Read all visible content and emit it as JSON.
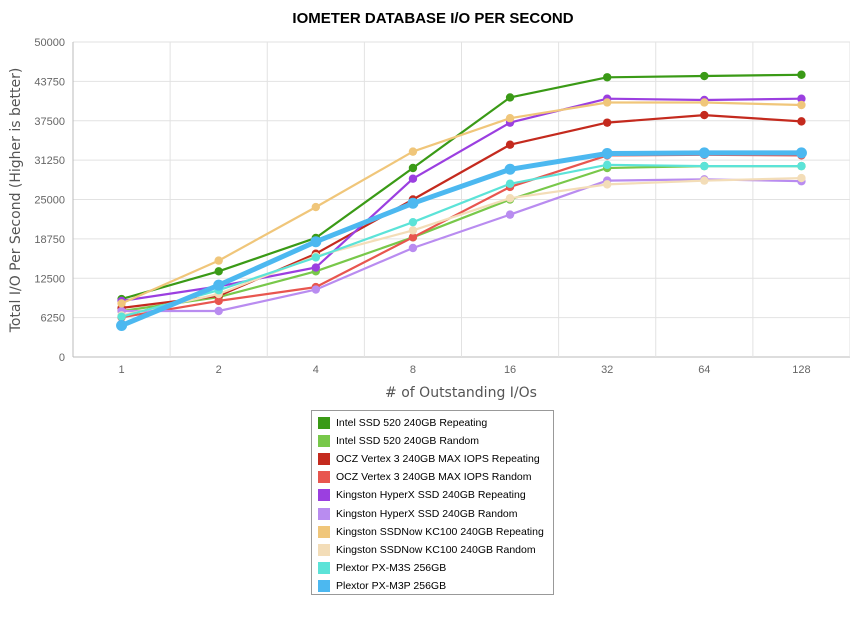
{
  "chart_data": {
    "type": "line",
    "title": "IOMETER DATABASE I/O PER SECOND",
    "xlabel": "# of Outstanding I/Os",
    "ylabel": "Total I/O Per Second (Higher is better)",
    "categories": [
      "1",
      "2",
      "4",
      "8",
      "16",
      "32",
      "64",
      "128"
    ],
    "yticks": [
      "0",
      "6250",
      "12500",
      "18750",
      "25000",
      "31250",
      "37500",
      "43750",
      "50000"
    ],
    "ylim": [
      0,
      50000
    ],
    "grid": true,
    "legend_position": "bottom",
    "series": [
      {
        "name": "Intel SSD 520 240GB Repeating",
        "color": "#3a9a16",
        "values": [
          9200,
          13600,
          18900,
          30000,
          41200,
          44400,
          44600,
          44800
        ]
      },
      {
        "name": "Intel SSD 520 240GB Random",
        "color": "#78c84a",
        "values": [
          7300,
          9500,
          13600,
          19000,
          25000,
          30000,
          30300,
          30300
        ]
      },
      {
        "name": "OCZ Vertex 3 240GB MAX IOPS Repeating",
        "color": "#c42a1e",
        "values": [
          7800,
          9700,
          16400,
          25000,
          33700,
          37200,
          38400,
          37400
        ]
      },
      {
        "name": "OCZ Vertex 3 240GB MAX IOPS Random",
        "color": "#e8564f",
        "values": [
          6300,
          8900,
          11100,
          19000,
          27000,
          32000,
          32100,
          32000
        ]
      },
      {
        "name": "Kingston HyperX SSD 240GB Repeating",
        "color": "#9b3fe0",
        "values": [
          8900,
          11200,
          14200,
          28300,
          37200,
          41000,
          40800,
          41000
        ]
      },
      {
        "name": "Kingston HyperX SSD 240GB Random",
        "color": "#b98cf0",
        "values": [
          7300,
          7300,
          10700,
          17300,
          22600,
          28000,
          28200,
          27900
        ]
      },
      {
        "name": "Kingston SSDNow KC100 240GB Repeating",
        "color": "#f0c67a",
        "values": [
          8500,
          15300,
          23800,
          32600,
          37900,
          40400,
          40400,
          40000
        ]
      },
      {
        "name": "Kingston SSDNow KC100 240GB Random",
        "color": "#f3ddb8",
        "values": [
          6600,
          10000,
          16000,
          20100,
          25200,
          27400,
          28000,
          28400
        ]
      },
      {
        "name": "Plextor PX-M3S 256GB",
        "color": "#5ce3d8",
        "values": [
          6400,
          10600,
          15800,
          21400,
          27500,
          30500,
          30300,
          30300
        ]
      },
      {
        "name": "Plextor PX-M3P 256GB",
        "color": "#4cb8f0",
        "values": [
          5000,
          11400,
          18300,
          24400,
          29800,
          32300,
          32400,
          32400
        ]
      }
    ]
  }
}
